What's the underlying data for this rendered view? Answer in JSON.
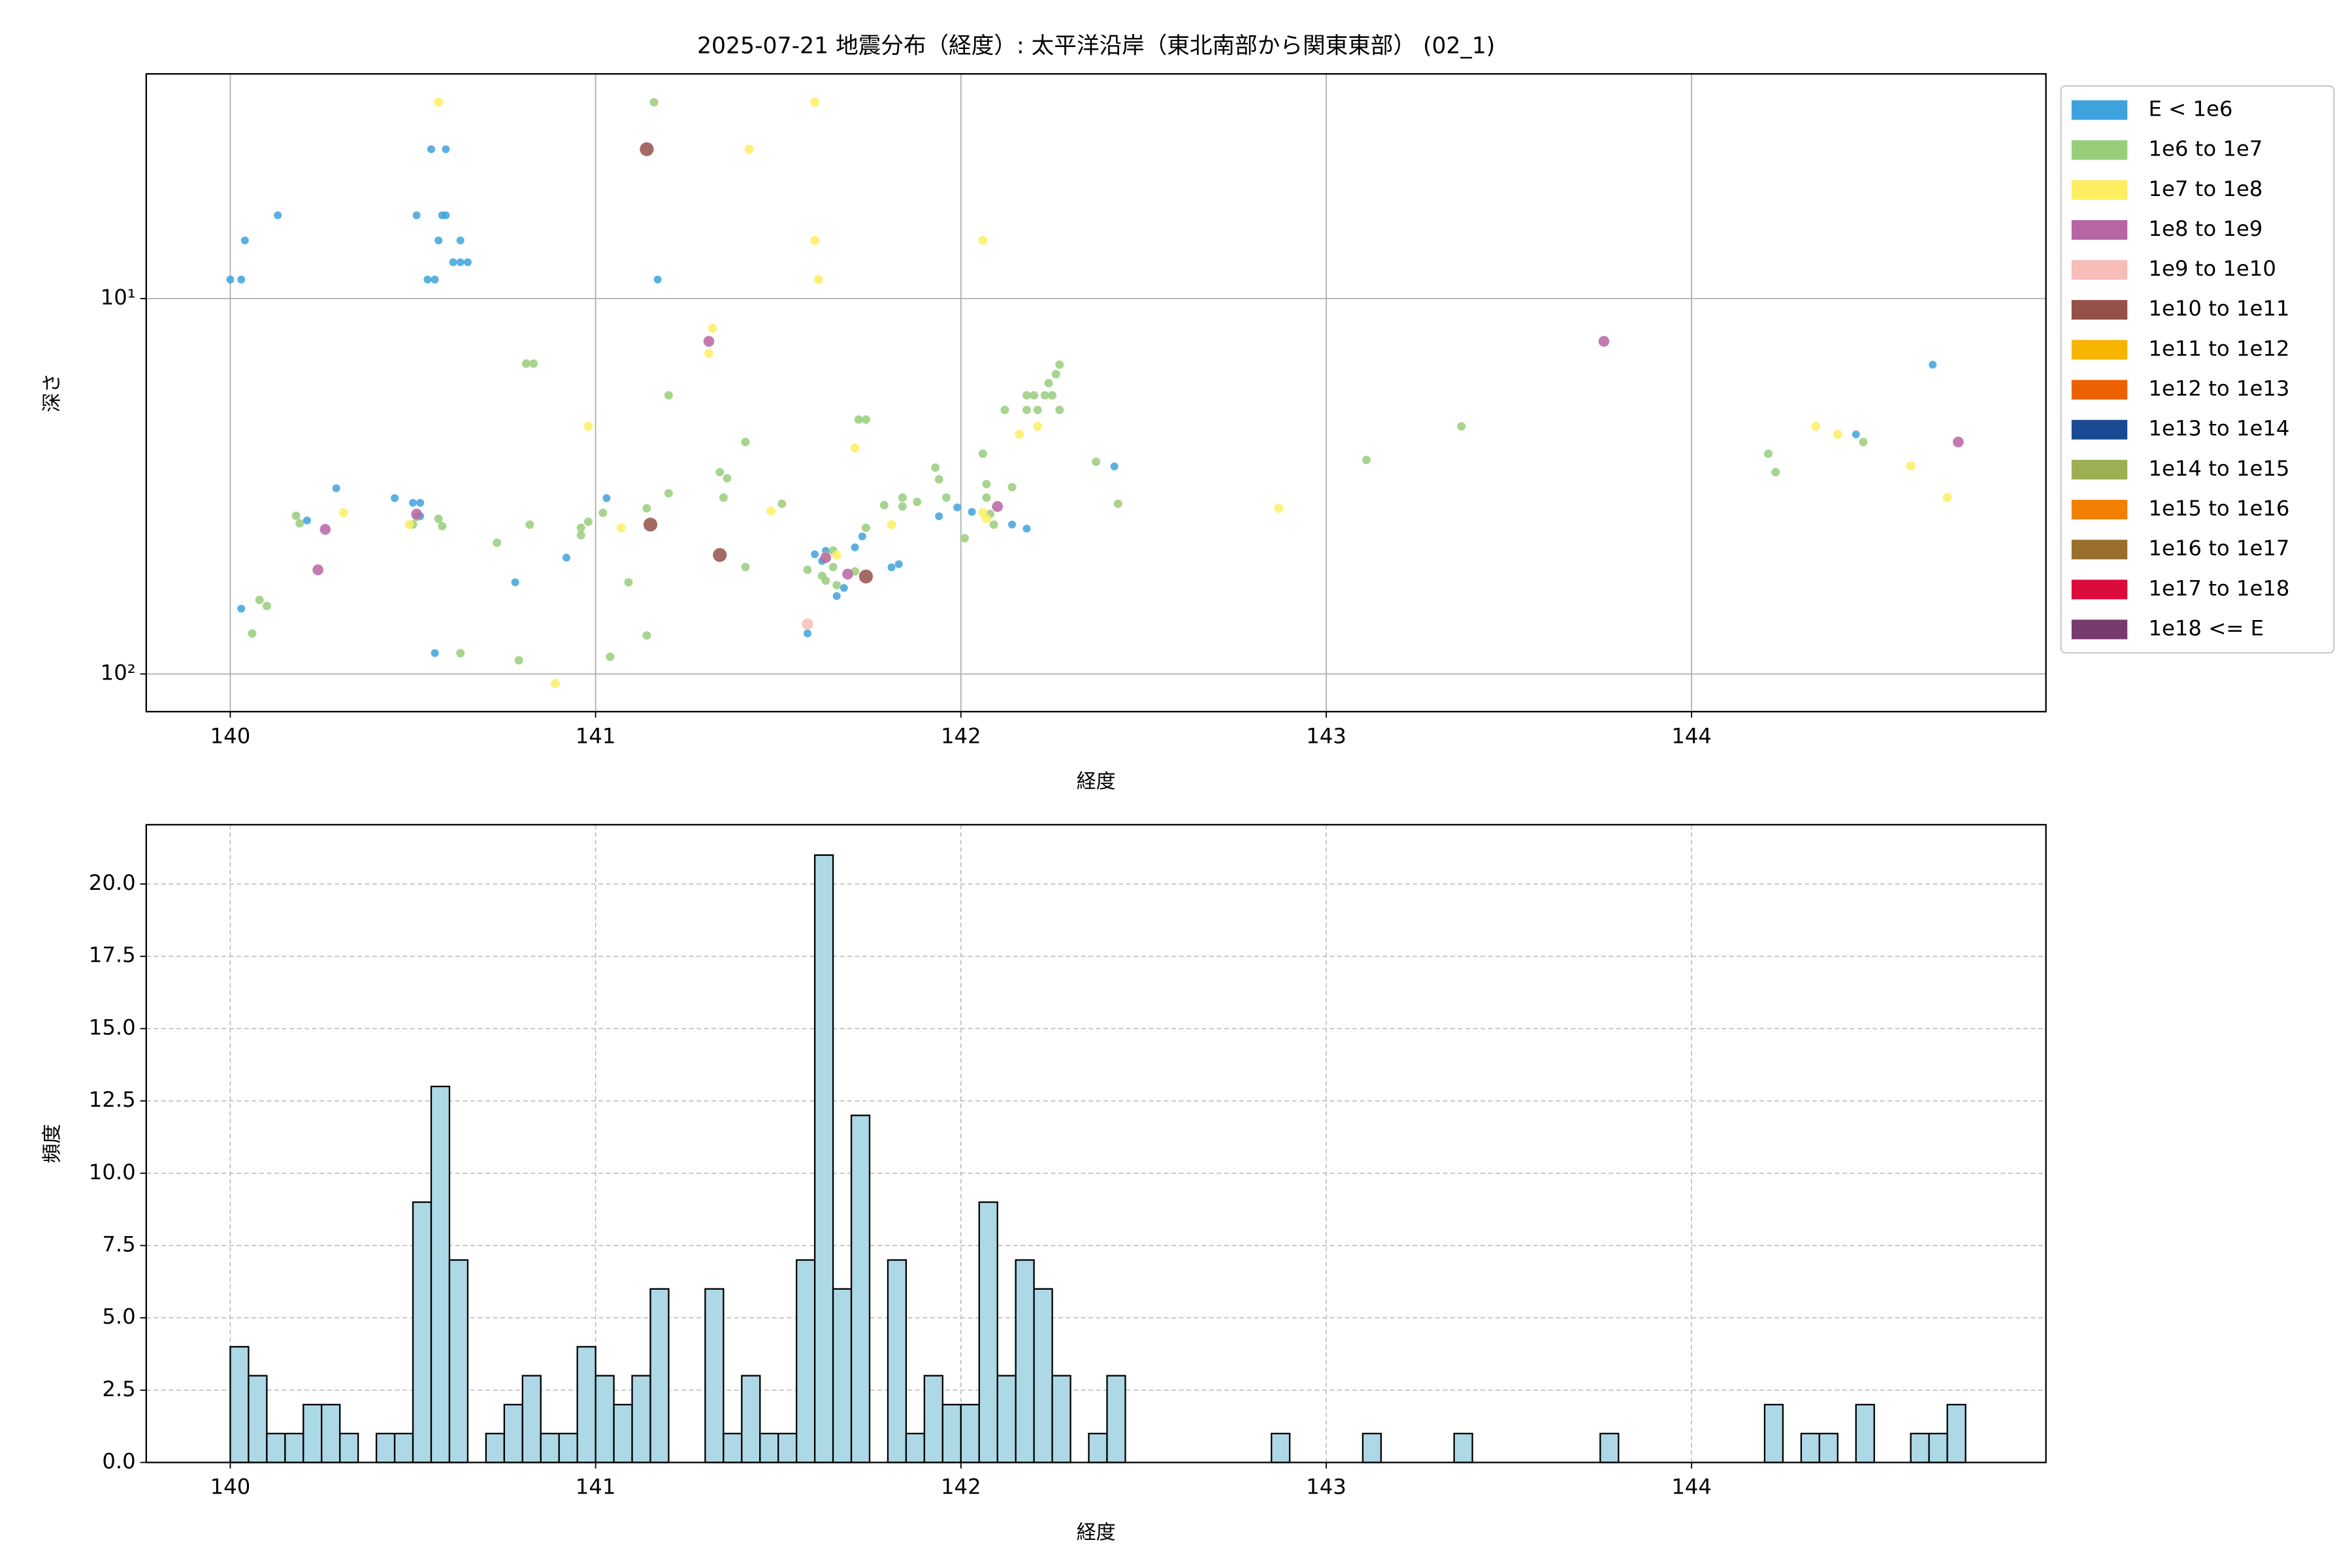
{
  "chart_data": [
    {
      "type": "scatter",
      "title": "2025-07-21 地震分布（経度）: 太平洋沿岸（東北南部から関東東部） (02_1)",
      "xlabel": "経度",
      "ylabel": "深さ",
      "xlim": [
        139.77,
        144.97
      ],
      "xticks": [
        140,
        141,
        142,
        143,
        144
      ],
      "ylim": [
        126,
        2.52
      ],
      "log_y": true,
      "yticks": [
        {
          "value": 10,
          "label": "10¹"
        },
        {
          "value": 100,
          "label": "10²"
        }
      ],
      "grid": true,
      "legend": "outside-upper-right",
      "series": [
        {
          "name": "E < 1e6",
          "color": "#3ea2dd",
          "x": [
            140.0,
            140.03,
            140.04,
            140.13,
            140.03,
            140.51,
            140.55,
            140.59,
            140.58,
            140.59,
            140.57,
            140.63,
            140.61,
            140.63,
            140.65,
            140.54,
            140.56,
            141.17,
            140.29,
            140.21,
            140.45,
            140.5,
            140.52,
            140.52,
            140.56,
            140.78,
            140.92,
            141.03,
            141.58,
            141.73,
            141.71,
            141.6,
            141.62,
            141.63,
            141.66,
            141.68,
            141.81,
            141.83,
            141.94,
            141.99,
            142.03,
            142.14,
            142.18,
            142.42,
            144.45,
            144.66
          ],
          "values": [
            8.9,
            8.9,
            7.0,
            6.0,
            67,
            6.0,
            4.0,
            4.0,
            6.0,
            6.0,
            7.0,
            7.0,
            8.0,
            8.0,
            8.0,
            8.9,
            8.9,
            8.9,
            32,
            39,
            34,
            35,
            35,
            38,
            88,
            57,
            49,
            34,
            78,
            43,
            46,
            48,
            50,
            47,
            62,
            59,
            52,
            51,
            38,
            36,
            37,
            40,
            41,
            28,
            23,
            15
          ]
        },
        {
          "name": "1e6 to 1e7",
          "color": "#98cd7a",
          "x": [
            141.16,
            140.81,
            140.83,
            141.2,
            141.41,
            141.34,
            141.36,
            141.51,
            141.2,
            141.14,
            141.35,
            140.98,
            140.96,
            140.73,
            140.82,
            140.96,
            141.02,
            140.18,
            140.19,
            140.08,
            140.1,
            140.06,
            140.63,
            140.79,
            141.04,
            141.09,
            141.14,
            141.41,
            141.74,
            141.72,
            141.58,
            141.62,
            141.63,
            141.65,
            141.65,
            141.66,
            141.71,
            141.74,
            141.79,
            141.84,
            141.88,
            141.84,
            141.93,
            141.94,
            141.96,
            142.01,
            142.06,
            142.07,
            142.07,
            142.08,
            142.09,
            142.12,
            142.14,
            142.18,
            142.18,
            142.2,
            142.21,
            142.23,
            142.25,
            142.24,
            142.26,
            142.27,
            142.27,
            142.37,
            142.43,
            143.11,
            143.37,
            144.21,
            144.23,
            144.47,
            140.51,
            140.57,
            140.58,
            140.5
          ],
          "values": [
            3.0,
            14.9,
            14.9,
            18.1,
            24.1,
            29.0,
            30.1,
            35.2,
            33.0,
            36.2,
            33.9,
            39.3,
            40.8,
            44.7,
            40.0,
            42.7,
            37.2,
            37.9,
            39.7,
            63.5,
            65.9,
            78,
            88,
            92,
            90,
            57,
            79,
            51.9,
            21,
            21,
            52.8,
            54.8,
            56.4,
            46.9,
            51.9,
            58,
            53.3,
            40.8,
            35.5,
            33.9,
            34.8,
            35.8,
            28.2,
            30.3,
            33.9,
            43.5,
            25.9,
            31.2,
            33.9,
            37.5,
            40.0,
            19.8,
            31.8,
            19.8,
            18.1,
            18.1,
            19.8,
            18.1,
            18.1,
            16.8,
            15.9,
            15.0,
            19.8,
            27.2,
            35.2,
            26.9,
            21.9,
            25.9,
            29.0,
            24.1,
            38.2,
            38.6,
            40.4,
            40.0
          ]
        },
        {
          "name": "1e7 to 1e8",
          "color": "#fdee62",
          "x": [
            140.57,
            141.6,
            141.42,
            141.6,
            141.61,
            142.06,
            141.32,
            141.31,
            140.98,
            141.07,
            141.48,
            141.71,
            141.63,
            141.66,
            141.81,
            142.06,
            142.07,
            142.16,
            142.21,
            142.87,
            144.34,
            144.4,
            144.6,
            144.7,
            140.31,
            140.49,
            140.89
          ],
          "values": [
            3.0,
            3.0,
            4.0,
            7.0,
            8.9,
            7.0,
            12.0,
            14.0,
            21.9,
            40.8,
            36.8,
            25.0,
            48.6,
            48.2,
            40.0,
            37.2,
            38.6,
            23.0,
            21.9,
            36.2,
            21.9,
            23.0,
            27.9,
            33.9,
            37.2,
            40.0,
            106
          ]
        },
        {
          "name": "1e8 to 1e9",
          "color": "#b765a5",
          "x": [
            141.31,
            143.76,
            144.73,
            140.26,
            140.24,
            140.51,
            142.1,
            141.69,
            141.63
          ],
          "values": [
            13.0,
            13.0,
            24.1,
            41.2,
            52.8,
            37.5,
            35.8,
            54.2,
            49
          ]
        },
        {
          "name": "1e9 to 1e10",
          "color": "#f7bdb9",
          "x": [
            141.58
          ],
          "values": [
            73.7
          ]
        },
        {
          "name": "1e10 to 1e11",
          "color": "#955049",
          "x": [
            141.14,
            141.15,
            141.34,
            141.74
          ],
          "values": [
            4.0,
            40.0,
            48.2,
            55
          ]
        },
        {
          "name": "1e11 to 1e12",
          "color": "#f7b400",
          "x": [],
          "values": []
        },
        {
          "name": "1e12 to 1e13",
          "color": "#ec6102",
          "x": [],
          "values": []
        },
        {
          "name": "1e13 to 1e14",
          "color": "#1a4a93",
          "x": [],
          "values": []
        },
        {
          "name": "1e14 to 1e15",
          "color": "#9caf52",
          "x": [],
          "values": []
        },
        {
          "name": "1e15 to 1e16",
          "color": "#f28004",
          "x": [],
          "values": []
        },
        {
          "name": "1e16 to 1e17",
          "color": "#9a6e2c",
          "x": [],
          "values": []
        },
        {
          "name": "1e17 to 1e18",
          "color": "#dd0a3c",
          "x": [],
          "values": []
        },
        {
          "name": "1e18 <= E",
          "color": "#783b6d",
          "x": [],
          "values": []
        }
      ]
    },
    {
      "type": "histogram",
      "xlabel": "経度",
      "ylabel": "頻度",
      "color": "#add8e6",
      "xlim": [
        139.77,
        144.97
      ],
      "xticks": [
        140,
        141,
        142,
        143,
        144
      ],
      "ylim": [
        0,
        22.05
      ],
      "yticks": [
        {
          "value": 0,
          "label": "0.0"
        },
        {
          "value": 2.5,
          "label": "2.5"
        },
        {
          "value": 5,
          "label": "5.0"
        },
        {
          "value": 7.5,
          "label": "7.5"
        },
        {
          "value": 10,
          "label": "10.0"
        },
        {
          "value": 12.5,
          "label": "12.5"
        },
        {
          "value": 15,
          "label": "15.0"
        },
        {
          "value": 17.5,
          "label": "17.5"
        },
        {
          "value": 20,
          "label": "20.0"
        }
      ],
      "grid": true,
      "bins": [
        140.0,
        140.05,
        140.1,
        140.15,
        140.2,
        140.25,
        140.3,
        140.35,
        140.4,
        140.45,
        140.5,
        140.55,
        140.6,
        140.65,
        140.7,
        140.75,
        140.8,
        140.85,
        140.9,
        140.95,
        141.0,
        141.05,
        141.1,
        141.15,
        141.2,
        141.25,
        141.3,
        141.35,
        141.4,
        141.45,
        141.5,
        141.55,
        141.6,
        141.65,
        141.7,
        141.75,
        141.8,
        141.85,
        141.9,
        141.95,
        142.0,
        142.05,
        142.1,
        142.15,
        142.2,
        142.25,
        142.3,
        142.35,
        142.4,
        142.45,
        142.5,
        142.55,
        142.6,
        142.65,
        142.7,
        142.75,
        142.8,
        142.85,
        142.9,
        142.95,
        143.0,
        143.05,
        143.1,
        143.15,
        143.2,
        143.25,
        143.3,
        143.35,
        143.4,
        143.45,
        143.5,
        143.55,
        143.6,
        143.65,
        143.7,
        143.75,
        143.8,
        143.85,
        143.9,
        143.95,
        144.0,
        144.05,
        144.1,
        144.15,
        144.2,
        144.25,
        144.3,
        144.35,
        144.4,
        144.45,
        144.5,
        144.55,
        144.6,
        144.65,
        144.7,
        144.75
      ],
      "values": [
        4,
        3,
        1,
        1,
        2,
        2,
        1,
        0,
        1,
        1,
        9,
        13,
        7,
        0,
        1,
        2,
        3,
        1,
        1,
        4,
        3,
        2,
        3,
        6,
        0,
        0,
        6,
        1,
        3,
        1,
        1,
        7,
        21,
        6,
        12,
        0,
        7,
        1,
        3,
        2,
        2,
        9,
        3,
        7,
        6,
        3,
        0,
        1,
        3,
        0,
        0,
        0,
        0,
        0,
        0,
        0,
        0,
        1,
        0,
        0,
        0,
        0,
        1,
        0,
        0,
        0,
        0,
        1,
        0,
        0,
        0,
        0,
        0,
        0,
        0,
        1,
        0,
        0,
        0,
        0,
        0,
        0,
        0,
        0,
        2,
        0,
        1,
        1,
        0,
        2,
        0,
        0,
        1,
        1,
        2
      ]
    }
  ]
}
